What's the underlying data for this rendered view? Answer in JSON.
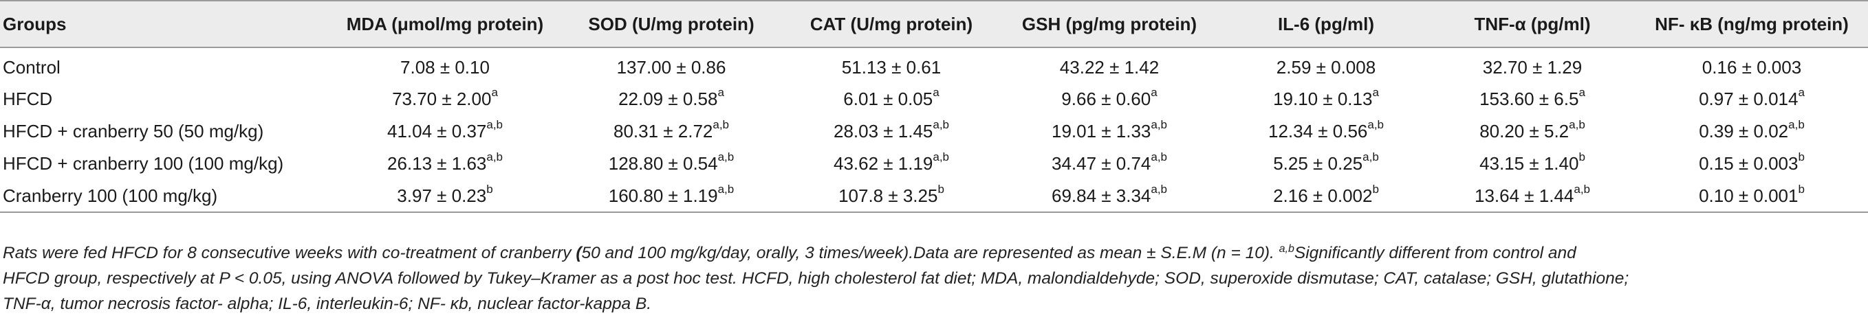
{
  "table": {
    "headers": [
      "Groups",
      "MDA (μmol/mg protein)",
      "SOD (U/mg protein)",
      "CAT (U/mg protein)",
      "GSH (pg/mg protein)",
      "IL-6 (pg/ml)",
      "TNF-α (pg/ml)",
      "NF- κB (ng/mg protein)"
    ],
    "rows": [
      {
        "group": "Control",
        "cells": [
          {
            "v": "7.08 ± 0.10",
            "s": ""
          },
          {
            "v": "137.00 ± 0.86",
            "s": ""
          },
          {
            "v": "51.13 ± 0.61",
            "s": ""
          },
          {
            "v": "43.22 ± 1.42",
            "s": ""
          },
          {
            "v": "2.59 ± 0.008",
            "s": ""
          },
          {
            "v": "32.70 ± 1.29",
            "s": ""
          },
          {
            "v": "0.16 ± 0.003",
            "s": ""
          }
        ]
      },
      {
        "group": "HFCD",
        "cells": [
          {
            "v": "73.70 ± 2.00",
            "s": "a"
          },
          {
            "v": "22.09 ± 0.58",
            "s": "a"
          },
          {
            "v": "6.01 ± 0.05",
            "s": "a"
          },
          {
            "v": "9.66 ± 0.60",
            "s": "a"
          },
          {
            "v": "19.10 ± 0.13",
            "s": "a"
          },
          {
            "v": "153.60 ± 6.5",
            "s": "a"
          },
          {
            "v": "0.97 ± 0.014",
            "s": "a"
          }
        ]
      },
      {
        "group": "HFCD + cranberry 50 (50 mg/kg)",
        "cells": [
          {
            "v": "41.04 ± 0.37",
            "s": "a,b"
          },
          {
            "v": "80.31 ± 2.72",
            "s": "a,b"
          },
          {
            "v": "28.03 ± 1.45",
            "s": "a,b"
          },
          {
            "v": "19.01 ± 1.33",
            "s": "a,b"
          },
          {
            "v": "12.34 ± 0.56",
            "s": "a,b"
          },
          {
            "v": "80.20 ± 5.2",
            "s": "a,b"
          },
          {
            "v": "0.39 ± 0.02",
            "s": "a,b"
          }
        ]
      },
      {
        "group": "HFCD + cranberry 100 (100 mg/kg)",
        "cells": [
          {
            "v": "26.13 ± 1.63",
            "s": "a,b"
          },
          {
            "v": "128.80 ± 0.54",
            "s": "a,b"
          },
          {
            "v": "43.62 ± 1.19",
            "s": "a,b"
          },
          {
            "v": "34.47 ± 0.74",
            "s": "a,b"
          },
          {
            "v": "5.25 ± 0.25",
            "s": "a,b"
          },
          {
            "v": "43.15 ± 1.40",
            "s": "b"
          },
          {
            "v": "0.15 ± 0.003",
            "s": "b"
          }
        ]
      },
      {
        "group": "Cranberry 100 (100 mg/kg)",
        "cells": [
          {
            "v": "3.97 ± 0.23",
            "s": "b"
          },
          {
            "v": "160.80 ± 1.19",
            "s": "a,b"
          },
          {
            "v": "107.8 ± 3.25",
            "s": "b"
          },
          {
            "v": "69.84 ± 3.34",
            "s": "a,b"
          },
          {
            "v": "2.16 ± 0.002",
            "s": "b"
          },
          {
            "v": "13.64 ± 1.44",
            "s": "a,b"
          },
          {
            "v": "0.10 ± 0.001",
            "s": "b"
          }
        ]
      }
    ]
  },
  "footnote": {
    "line1_before_paren": "Rats were fed HFCD for 8 consecutive weeks with co-treatment of cranberry ",
    "line1_paren": "(",
    "line1_after_paren": "50 and 100 mg/kg/day, orally, 3 times/week).Data are represented as mean ± S.E.M (n = 10). ",
    "sig_sup": "a,b",
    "line1_sig": "Significantly different from control and",
    "line2": "HFCD group, respectively at P < 0.05, using ANOVA followed by Tukey–Kramer as a post hoc test. HCFD, high cholesterol fat diet; MDA, malondialdehyde; SOD, superoxide dismutase; CAT, catalase; GSH, glutathione;",
    "line3": "TNF-α, tumor necrosis factor- alpha; IL-6, interleukin-6; NF- κb, nuclear factor-kappa B."
  }
}
